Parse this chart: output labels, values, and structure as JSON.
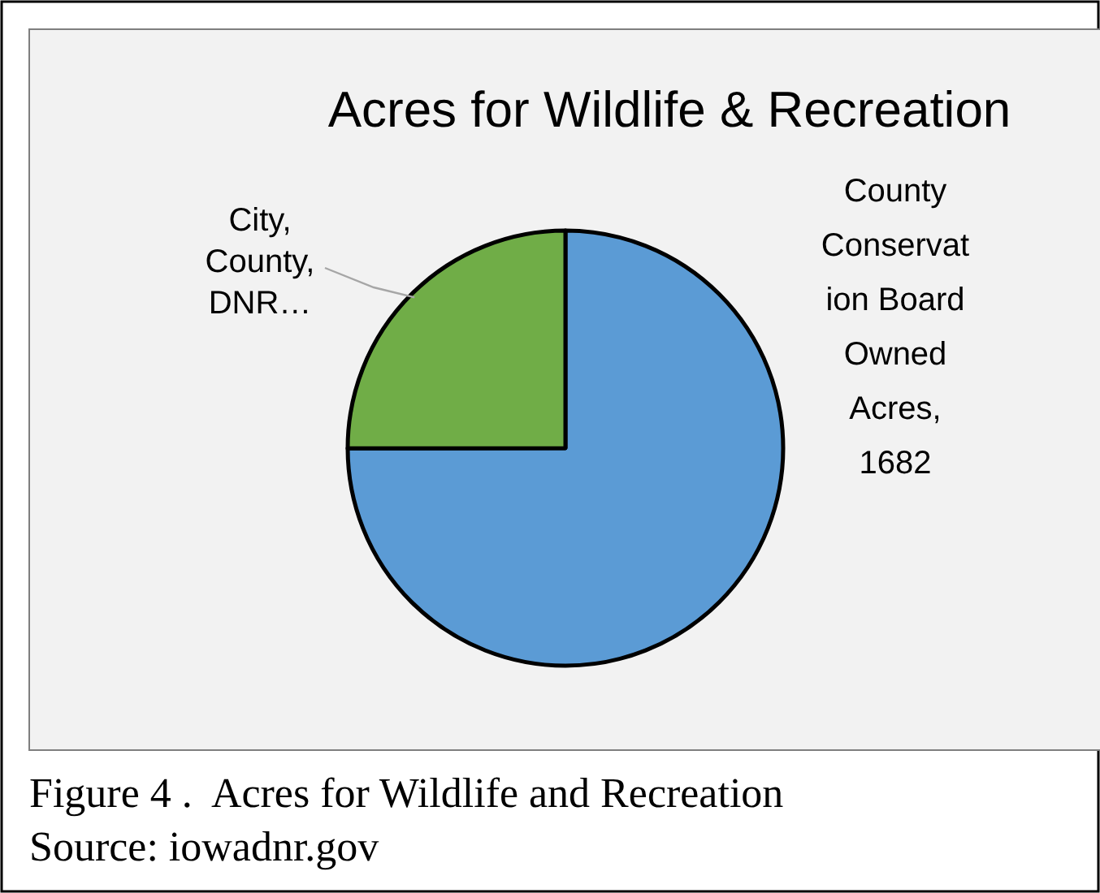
{
  "chart_data": {
    "type": "pie",
    "title": "Acres for Wildlife & Recreation",
    "categories": [
      "County Conservation Board Owned Acres",
      "City, County, DNR…"
    ],
    "values": [
      1682,
      561
    ],
    "colors": [
      "#5b9bd5",
      "#70ad47"
    ],
    "value_labels": [
      ", 1682",
      null
    ],
    "annotations": [
      "Figure 4 .  Acres for Wildlife and Recreation",
      "Source: iowadnr.gov"
    ]
  }
}
